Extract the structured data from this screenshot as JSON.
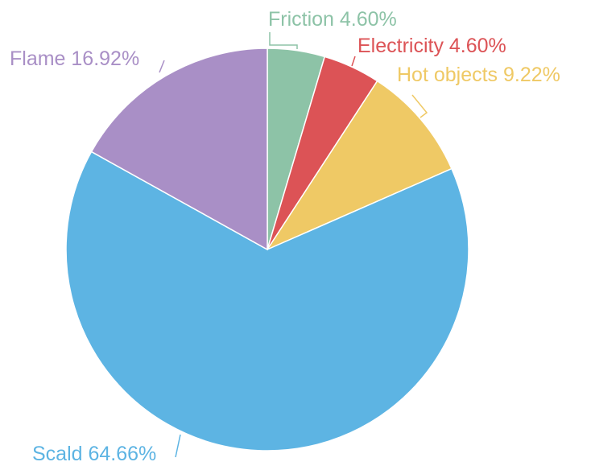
{
  "chart_data": {
    "type": "pie",
    "title": "",
    "slices": [
      {
        "label": "Friction",
        "value": 4.6,
        "value_text": "4.60%",
        "color": "#8dc3a7"
      },
      {
        "label": "Electricity",
        "value": 4.6,
        "value_text": "4.60%",
        "color": "#dc5356"
      },
      {
        "label": "Hot objects",
        "value": 9.22,
        "value_text": "9.22%",
        "color": "#efc965"
      },
      {
        "label": "Scald",
        "value": 64.66,
        "value_text": "64.66%",
        "color": "#5db4e3"
      },
      {
        "label": "Flame",
        "value": 16.92,
        "value_text": "16.92%",
        "color": "#a98fc6"
      }
    ],
    "start_angle": "12 o'clock",
    "direction": "clockwise",
    "legend": "none",
    "label_style": "outside labels with leader lines"
  }
}
